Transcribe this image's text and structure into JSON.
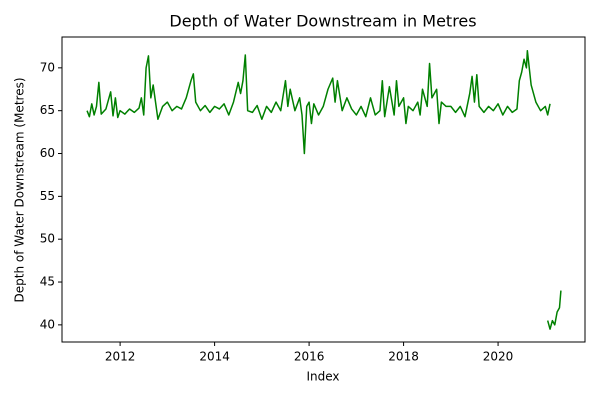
{
  "chart_data": {
    "type": "line",
    "title": "Depth of Water Downstream in Metres",
    "x_label": "Index",
    "y_label": "Depth of Water Downstream (Metres)",
    "color": "#008000",
    "x": [
      2011.3,
      2011.35,
      2011.4,
      2011.45,
      2011.5,
      2011.55,
      2011.6,
      2011.7,
      2011.8,
      2011.85,
      2011.9,
      2011.95,
      2012.0,
      2012.1,
      2012.2,
      2012.3,
      2012.4,
      2012.45,
      2012.5,
      2012.55,
      2012.6,
      2012.65,
      2012.7,
      2012.75,
      2012.8,
      2012.9,
      2013.0,
      2013.1,
      2013.2,
      2013.3,
      2013.4,
      2013.5,
      2013.55,
      2013.6,
      2013.7,
      2013.8,
      2013.9,
      2014.0,
      2014.1,
      2014.2,
      2014.3,
      2014.4,
      2014.5,
      2014.55,
      2014.6,
      2014.65,
      2014.7,
      2014.8,
      2014.9,
      2015.0,
      2015.1,
      2015.2,
      2015.3,
      2015.4,
      2015.5,
      2015.55,
      2015.6,
      2015.7,
      2015.8,
      2015.85,
      2015.9,
      2015.95,
      2016.0,
      2016.05,
      2016.1,
      2016.2,
      2016.3,
      2016.4,
      2016.5,
      2016.55,
      2016.6,
      2016.7,
      2016.8,
      2016.9,
      2017.0,
      2017.1,
      2017.2,
      2017.3,
      2017.4,
      2017.5,
      2017.55,
      2017.6,
      2017.7,
      2017.8,
      2017.85,
      2017.9,
      2018.0,
      2018.05,
      2018.1,
      2018.2,
      2018.3,
      2018.35,
      2018.4,
      2018.5,
      2018.55,
      2018.6,
      2018.7,
      2018.75,
      2018.8,
      2018.9,
      2019.0,
      2019.1,
      2019.2,
      2019.3,
      2019.4,
      2019.45,
      2019.5,
      2019.55,
      2019.6,
      2019.7,
      2019.8,
      2019.9,
      2020.0,
      2020.1,
      2020.2,
      2020.3,
      2020.4,
      2020.45,
      2020.5,
      2020.55,
      2020.6,
      2020.62,
      2020.7,
      2020.8,
      2020.9,
      2021.0,
      2021.05,
      2021.1,
      2021.1,
      2021.05,
      2021.1,
      2021.15,
      2021.2,
      2021.25,
      2021.3,
      2021.33
    ],
    "values": [
      65.0,
      64.3,
      65.8,
      64.5,
      65.5,
      68.3,
      64.6,
      65.2,
      67.2,
      64.4,
      66.5,
      64.2,
      65.0,
      64.6,
      65.2,
      64.8,
      65.3,
      66.5,
      64.5,
      70.0,
      71.4,
      66.5,
      68.0,
      66.0,
      64.0,
      65.5,
      66.0,
      65.0,
      65.5,
      65.2,
      66.5,
      68.5,
      69.3,
      66.0,
      65.0,
      65.6,
      64.8,
      65.5,
      65.2,
      65.8,
      64.5,
      66.0,
      68.3,
      67.0,
      68.5,
      71.5,
      65.0,
      64.8,
      65.6,
      64.0,
      65.5,
      64.8,
      66.0,
      65.0,
      68.5,
      65.5,
      67.5,
      65.0,
      66.5,
      64.5,
      60.0,
      65.5,
      66.0,
      63.5,
      65.8,
      64.5,
      65.5,
      67.5,
      68.8,
      66.0,
      68.5,
      65.0,
      66.5,
      65.2,
      64.5,
      65.5,
      64.3,
      66.5,
      64.5,
      65.0,
      68.5,
      64.3,
      67.8,
      64.5,
      68.5,
      65.5,
      66.5,
      63.5,
      65.5,
      65.0,
      66.0,
      64.5,
      67.5,
      65.5,
      70.5,
      66.5,
      67.5,
      63.5,
      66.0,
      65.5,
      65.5,
      64.8,
      65.5,
      64.3,
      67.0,
      69.0,
      66.0,
      69.2,
      65.5,
      64.8,
      65.5,
      65.0,
      65.8,
      64.5,
      65.5,
      64.8,
      65.2,
      68.5,
      69.5,
      71.0,
      70.0,
      72.0,
      68.0,
      66.0,
      65.0,
      65.5,
      64.5,
      65.8,
      null,
      40.5,
      39.5,
      40.5,
      40.0,
      41.5,
      42.0,
      44.0
    ],
    "xlim": [
      2010.77,
      2021.84
    ],
    "xticks": [
      2012,
      2014,
      2016,
      2018,
      2020
    ],
    "ylim": [
      38.0,
      73.6
    ],
    "yticks": [
      40,
      45,
      50,
      55,
      60,
      65,
      70
    ]
  }
}
